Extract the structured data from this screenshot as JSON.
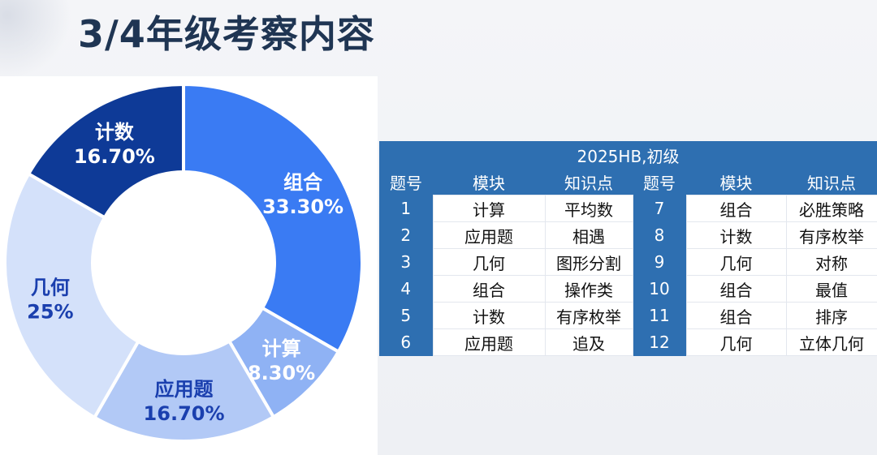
{
  "page": {
    "title": "3/4年级考察内容"
  },
  "chart_data": {
    "type": "pie",
    "donut": true,
    "slices": [
      {
        "label": "组合",
        "value": 33.3,
        "value_label": "33.30%",
        "color": "#3a7bf3",
        "text_color": "#ffffff"
      },
      {
        "label": "计算",
        "value": 8.3,
        "value_label": "8.30%",
        "color": "#8fb2f4",
        "text_color": "#ffffff"
      },
      {
        "label": "应用题",
        "value": 16.7,
        "value_label": "16.70%",
        "color": "#b2c9f6",
        "text_color": "#1a3fae"
      },
      {
        "label": "几何",
        "value": 25,
        "value_label": "25%",
        "color": "#d4e1fa",
        "text_color": "#1a3fae"
      },
      {
        "label": "计数",
        "value": 16.7,
        "value_label": "16.70%",
        "color": "#0e3a97",
        "text_color": "#ffffff"
      }
    ]
  },
  "table": {
    "caption": "2025HB,初级",
    "headers": [
      "题号",
      "模块",
      "知识点",
      "题号",
      "模块",
      "知识点"
    ],
    "rows": [
      [
        "1",
        "计算",
        "平均数",
        "7",
        "组合",
        "必胜策略"
      ],
      [
        "2",
        "应用题",
        "相遇",
        "8",
        "计数",
        "有序枚举"
      ],
      [
        "3",
        "几何",
        "图形分割",
        "9",
        "几何",
        "对称"
      ],
      [
        "4",
        "组合",
        "操作类",
        "10",
        "组合",
        "最值"
      ],
      [
        "5",
        "计数",
        "有序枚举",
        "11",
        "组合",
        "排序"
      ],
      [
        "6",
        "应用题",
        "追及",
        "12",
        "几何",
        "立体几何"
      ]
    ],
    "header_color": "#2e6fb1"
  }
}
